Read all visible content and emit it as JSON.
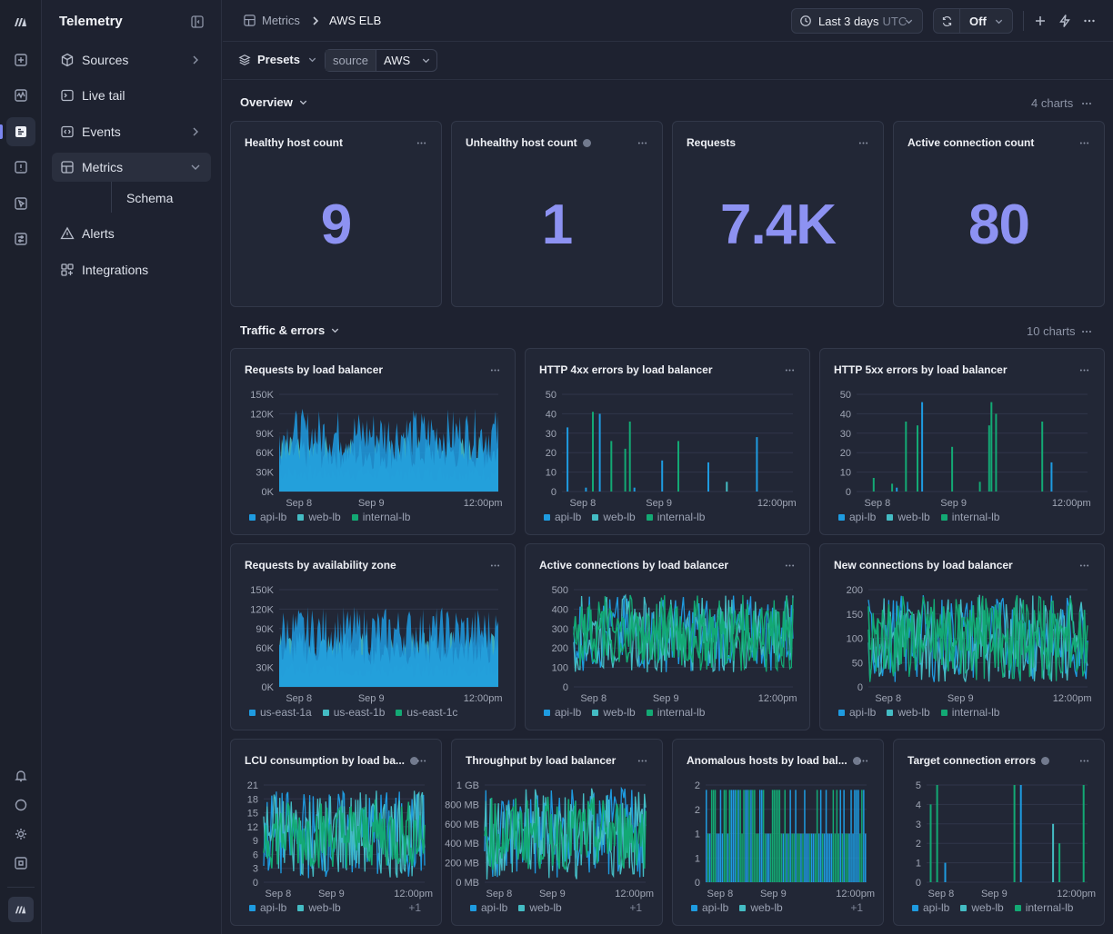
{
  "app": {
    "title": "Telemetry"
  },
  "colors": {
    "api": "#1e9be0",
    "web": "#44bcc4",
    "internal": "#13a974",
    "accent": "#8d92f2"
  },
  "rail": {
    "icons": [
      "logo-icon",
      "sparkle-icon",
      "activity-icon",
      "logs-icon",
      "alert-box-icon",
      "cursor-icon",
      "sliders-icon",
      "bell-icon",
      "chat-icon",
      "sun-icon",
      "command-icon"
    ]
  },
  "sidebar": {
    "items": [
      {
        "label": "Sources",
        "icon": "cube-icon",
        "chevron": "right"
      },
      {
        "label": "Live tail",
        "icon": "terminal-icon"
      },
      {
        "label": "Events",
        "icon": "code-icon",
        "chevron": "right"
      },
      {
        "label": "Metrics",
        "icon": "grid-icon",
        "chevron": "down"
      },
      {
        "label": "Alerts",
        "icon": "warning-icon"
      },
      {
        "label": "Integrations",
        "icon": "puzzle-icon"
      }
    ],
    "sub_item": "Schema"
  },
  "header": {
    "breadcrumb": [
      "Metrics",
      "AWS ELB"
    ],
    "time_range": "Last 3 days",
    "timezone": "UTC",
    "refresh": "Off"
  },
  "filters": {
    "presets_label": "Presets",
    "chip_key": "source",
    "chip_value": "AWS"
  },
  "sections": {
    "overview": {
      "title": "Overview",
      "count": "4 charts"
    },
    "traffic": {
      "title": "Traffic & errors",
      "count": "10 charts"
    }
  },
  "stats": [
    {
      "title": "Healthy host count",
      "value": "9"
    },
    {
      "title": "Unhealthy host count",
      "value": "1",
      "info": true
    },
    {
      "title": "Requests",
      "value": "7.4K"
    },
    {
      "title": "Active connection count",
      "value": "80"
    }
  ],
  "chart_data": [
    {
      "type": "area",
      "title": "Requests by load balancer",
      "kind": "dense",
      "yticks": [
        "150K",
        "120K",
        "90K",
        "60K",
        "30K",
        "0K"
      ],
      "ylim": [
        0,
        150000
      ],
      "xticks": [
        "Sep 8",
        "Sep 9",
        "12:00pm"
      ],
      "series": [
        {
          "name": "api-lb",
          "color": "#1e9be0",
          "level": 0.62
        },
        {
          "name": "web-lb",
          "color": "#44bcc4",
          "level": 0.42
        },
        {
          "name": "internal-lb",
          "color": "#13a974",
          "level": 0.2
        }
      ],
      "more": ""
    },
    {
      "type": "bar",
      "title": "HTTP 4xx errors by load balancer",
      "kind": "spikes",
      "yticks": [
        "50",
        "40",
        "30",
        "20",
        "10",
        "0"
      ],
      "ylim": [
        0,
        50
      ],
      "xticks": [
        "Sep 8",
        "Sep 9",
        "12:00pm"
      ],
      "series": [
        {
          "name": "api-lb",
          "color": "#1e9be0"
        },
        {
          "name": "web-lb",
          "color": "#44bcc4"
        },
        {
          "name": "internal-lb",
          "color": "#13a974"
        }
      ],
      "spikes": [
        [
          0.02,
          33,
          "api"
        ],
        [
          0.1,
          2,
          "api"
        ],
        [
          0.13,
          41,
          "internal"
        ],
        [
          0.16,
          40,
          "api"
        ],
        [
          0.21,
          26,
          "internal"
        ],
        [
          0.27,
          22,
          "internal"
        ],
        [
          0.29,
          36,
          "internal"
        ],
        [
          0.31,
          2,
          "api"
        ],
        [
          0.43,
          16,
          "api"
        ],
        [
          0.5,
          26,
          "internal"
        ],
        [
          0.63,
          15,
          "api"
        ],
        [
          0.71,
          5,
          "web"
        ],
        [
          0.84,
          28,
          "api"
        ]
      ],
      "more": ""
    },
    {
      "type": "bar",
      "title": "HTTP 5xx errors by load balancer",
      "kind": "spikes",
      "yticks": [
        "50",
        "40",
        "30",
        "20",
        "10",
        "0"
      ],
      "ylim": [
        0,
        50
      ],
      "xticks": [
        "Sep 8",
        "Sep 9",
        "12:00pm"
      ],
      "series": [
        {
          "name": "api-lb",
          "color": "#1e9be0"
        },
        {
          "name": "web-lb",
          "color": "#44bcc4"
        },
        {
          "name": "internal-lb",
          "color": "#13a974"
        }
      ],
      "spikes": [
        [
          0.07,
          7,
          "internal"
        ],
        [
          0.15,
          4,
          "internal"
        ],
        [
          0.17,
          2,
          "api"
        ],
        [
          0.21,
          36,
          "internal"
        ],
        [
          0.26,
          34,
          "internal"
        ],
        [
          0.28,
          46,
          "api"
        ],
        [
          0.41,
          23,
          "internal"
        ],
        [
          0.53,
          5,
          "internal"
        ],
        [
          0.57,
          34,
          "internal"
        ],
        [
          0.58,
          46,
          "internal"
        ],
        [
          0.6,
          40,
          "internal"
        ],
        [
          0.8,
          36,
          "internal"
        ],
        [
          0.84,
          15,
          "api"
        ]
      ],
      "more": ""
    },
    {
      "type": "area",
      "title": "Requests by availability zone",
      "kind": "dense",
      "yticks": [
        "150K",
        "120K",
        "90K",
        "60K",
        "30K",
        "0K"
      ],
      "ylim": [
        0,
        150000
      ],
      "xticks": [
        "Sep 8",
        "Sep 9",
        "12:00pm"
      ],
      "series": [
        {
          "name": "us-east-1a",
          "color": "#1e9be0",
          "level": 0.6
        },
        {
          "name": "us-east-1b",
          "color": "#44bcc4",
          "level": 0.42
        },
        {
          "name": "us-east-1c",
          "color": "#13a974",
          "level": 0.18
        }
      ],
      "more": ""
    },
    {
      "type": "area",
      "title": "Active connections by load balancer",
      "kind": "band",
      "yticks": [
        "500",
        "400",
        "300",
        "200",
        "100",
        "0"
      ],
      "ylim": [
        0,
        500
      ],
      "xticks": [
        "Sep 8",
        "Sep 9",
        "12:00pm"
      ],
      "series": [
        {
          "name": "api-lb",
          "color": "#1e9be0"
        },
        {
          "name": "web-lb",
          "color": "#44bcc4"
        },
        {
          "name": "internal-lb",
          "color": "#13a974"
        }
      ],
      "band": [
        0.15,
        0.95
      ],
      "more": ""
    },
    {
      "type": "area",
      "title": "New connections by load balancer",
      "kind": "band",
      "yticks": [
        "200",
        "150",
        "100",
        "50",
        "0"
      ],
      "ylim": [
        0,
        200
      ],
      "xticks": [
        "Sep 8",
        "Sep 9",
        "12:00pm"
      ],
      "series": [
        {
          "name": "api-lb",
          "color": "#1e9be0"
        },
        {
          "name": "web-lb",
          "color": "#44bcc4"
        },
        {
          "name": "internal-lb",
          "color": "#13a974"
        }
      ],
      "band": [
        0.05,
        0.95
      ],
      "more": ""
    },
    {
      "type": "area",
      "title": "LCU consumption by load ba...",
      "info": true,
      "kind": "band",
      "yticks": [
        "21",
        "18",
        "15",
        "12",
        "9",
        "6",
        "3",
        "0"
      ],
      "ylim": [
        0,
        21
      ],
      "xticks": [
        "Sep 8",
        "Sep 9",
        "12:00pm"
      ],
      "series": [
        {
          "name": "api-lb",
          "color": "#1e9be0"
        },
        {
          "name": "web-lb",
          "color": "#44bcc4"
        }
      ],
      "band": [
        0.04,
        0.95
      ],
      "more": "+1"
    },
    {
      "type": "area",
      "title": "Throughput by load balancer",
      "kind": "band",
      "yticks": [
        "1 GB",
        "800 MB",
        "600 MB",
        "400 MB",
        "200 MB",
        "0 MB"
      ],
      "ylim": [
        0,
        1000
      ],
      "xticks": [
        "Sep 8",
        "Sep 9",
        "12:00pm"
      ],
      "series": [
        {
          "name": "api-lb",
          "color": "#1e9be0"
        },
        {
          "name": "web-lb",
          "color": "#44bcc4"
        }
      ],
      "band": [
        0.02,
        0.98
      ],
      "more": "+1"
    },
    {
      "type": "bar",
      "title": "Anomalous hosts by load bal...",
      "info": true,
      "kind": "binary",
      "yticks": [
        "2",
        "2",
        "1",
        "1",
        "0"
      ],
      "ylim": [
        0,
        2
      ],
      "xticks": [
        "Sep 8",
        "Sep 9",
        "12:00pm"
      ],
      "series": [
        {
          "name": "api-lb",
          "color": "#1e9be0"
        },
        {
          "name": "web-lb",
          "color": "#44bcc4"
        }
      ],
      "more": "+1"
    },
    {
      "type": "bar",
      "title": "Target connection errors",
      "info": true,
      "kind": "spikes",
      "yticks": [
        "5",
        "4",
        "3",
        "2",
        "1",
        "0"
      ],
      "ylim": [
        0,
        5
      ],
      "xticks": [
        "Sep 8",
        "Sep 9",
        "12:00pm"
      ],
      "series": [
        {
          "name": "api-lb",
          "color": "#1e9be0"
        },
        {
          "name": "web-lb",
          "color": "#44bcc4"
        },
        {
          "name": "internal-lb",
          "color": "#13a974"
        }
      ],
      "spikes": [
        [
          0.02,
          4,
          "internal"
        ],
        [
          0.06,
          5,
          "internal"
        ],
        [
          0.11,
          1,
          "api"
        ],
        [
          0.54,
          5,
          "internal"
        ],
        [
          0.58,
          5,
          "api"
        ],
        [
          0.78,
          3,
          "web"
        ],
        [
          0.82,
          2,
          "internal"
        ],
        [
          0.97,
          5,
          "internal"
        ]
      ],
      "more": ""
    }
  ]
}
